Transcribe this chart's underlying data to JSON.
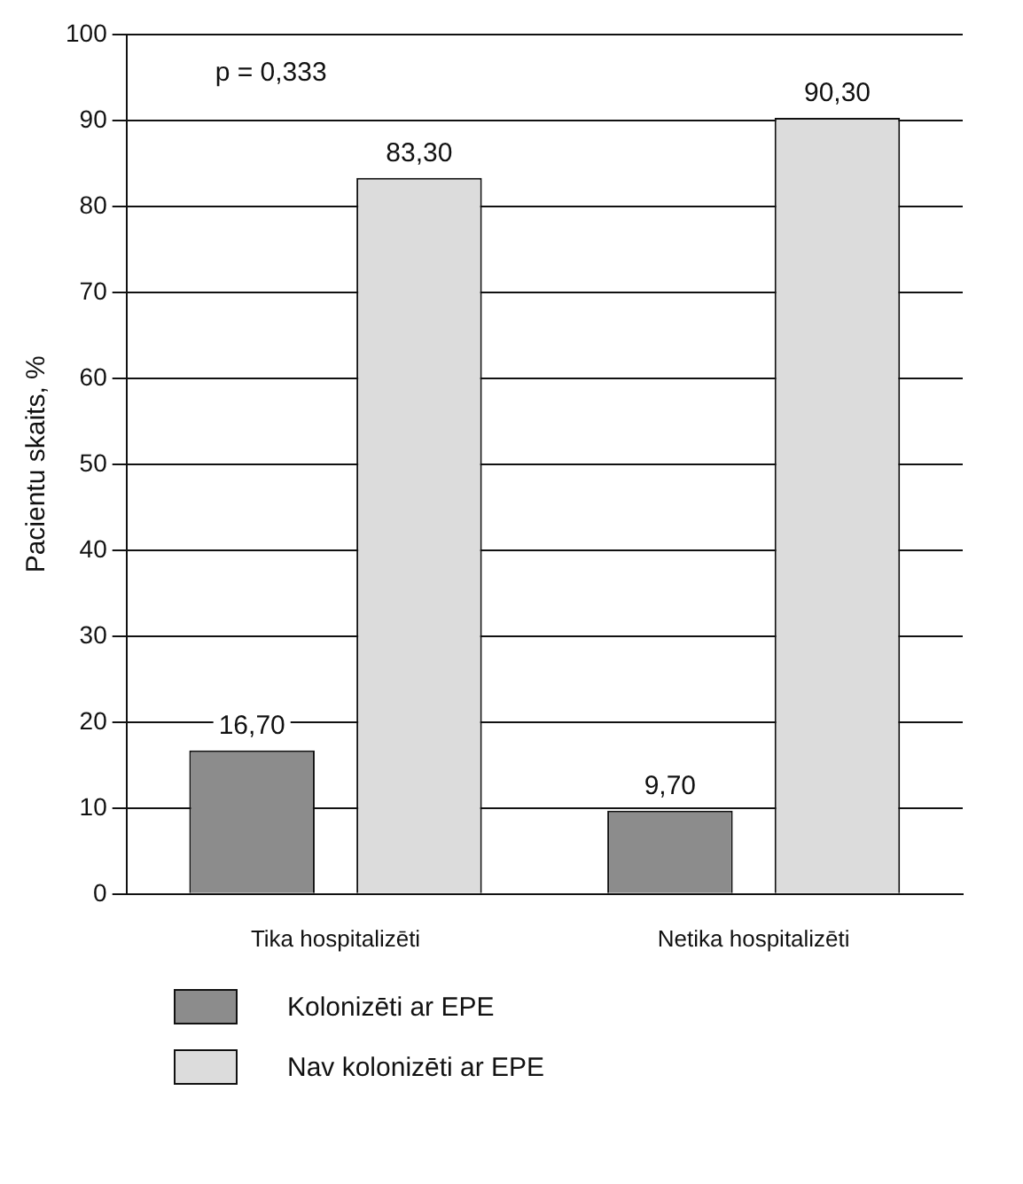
{
  "chart_data": {
    "type": "bar",
    "ylabel": "Pacientu skaits, %",
    "categories": [
      "Tika hospitalizēti",
      "Netika hospitalizēti"
    ],
    "series": [
      {
        "name": "Kolonizēti ar EPE",
        "color": "#8c8c8c",
        "values": [
          16.7,
          9.7
        ],
        "value_labels": [
          "16,70",
          "9,70"
        ]
      },
      {
        "name": "Nav kolonizēti ar EPE",
        "color": "#dcdcdc",
        "values": [
          83.3,
          90.3
        ],
        "value_labels": [
          "83,30",
          "90,30"
        ]
      }
    ],
    "ylim": [
      0,
      100
    ],
    "yticks": [
      0,
      10,
      20,
      30,
      40,
      50,
      60,
      70,
      80,
      90,
      100
    ],
    "grid": "y",
    "legend": "bottom",
    "annotations": [
      "p = 0,333"
    ]
  }
}
